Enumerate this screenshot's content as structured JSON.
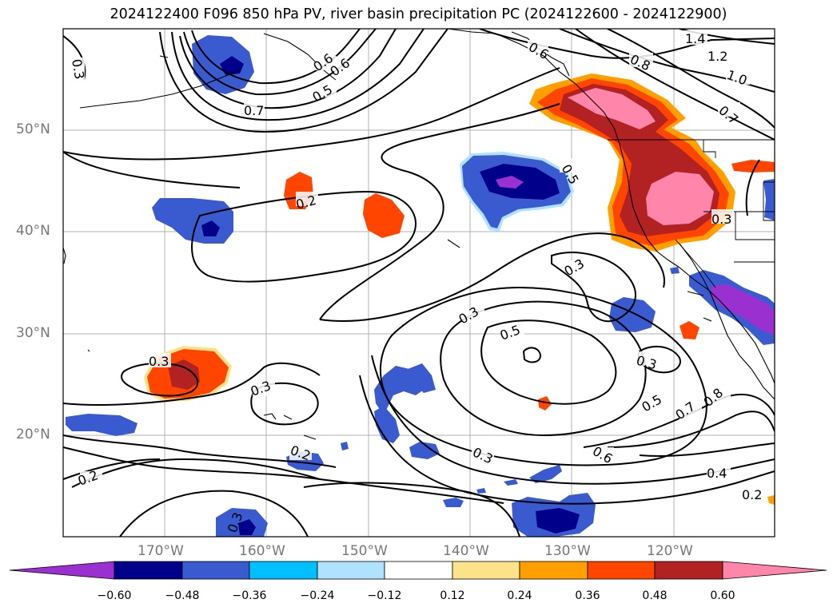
{
  "title": "2024122400 F096 850 hPa PV, river basin precipitation PC (2024122600 - 2024122900)",
  "latitude_labels": [
    "50°N",
    "40°N",
    "30°N",
    "20°N"
  ],
  "longitude_labels": [
    "170°W",
    "160°W",
    "150°W",
    "140°W",
    "130°W",
    "120°W"
  ],
  "contour_labels": [
    "0.3",
    "0.7",
    "0.5",
    "0.6",
    "0.6",
    "0.6",
    "1.4",
    "1.2",
    "1.0",
    "0.8",
    "0.7",
    "0.5",
    "0.2",
    "0.3",
    "0.3",
    "0.5",
    "0.3",
    "0.3",
    "0.3",
    "0.3",
    "0.5",
    "0.7",
    "0.8",
    "0.6",
    "0.4",
    "0.2",
    "0.3",
    "0.2",
    "0.2",
    "0.3"
  ],
  "colorbar": {
    "ticks": [
      "−0.60",
      "−0.48",
      "−0.36",
      "−0.24",
      "−0.12",
      "0.12",
      "0.24",
      "0.36",
      "0.48",
      "0.60"
    ],
    "colors": [
      "#9b30d0",
      "#00008b",
      "#3a5bd0",
      "#00bfff",
      "#b0e2ff",
      "#ffffff",
      "#fce38a",
      "#ff9f00",
      "#ff4500",
      "#b22222",
      "#ff85aa"
    ]
  },
  "shading_colors": {
    "neg_1": "#b0e2ff",
    "neg_2": "#00bfff",
    "neg_3": "#3a5bd0",
    "neg_4": "#00008b",
    "neg_5": "#9b30d0",
    "pos_1": "#fce38a",
    "pos_2": "#ff9f00",
    "pos_3": "#ff4500",
    "pos_4": "#b22222",
    "pos_5": "#ff85aa"
  }
}
